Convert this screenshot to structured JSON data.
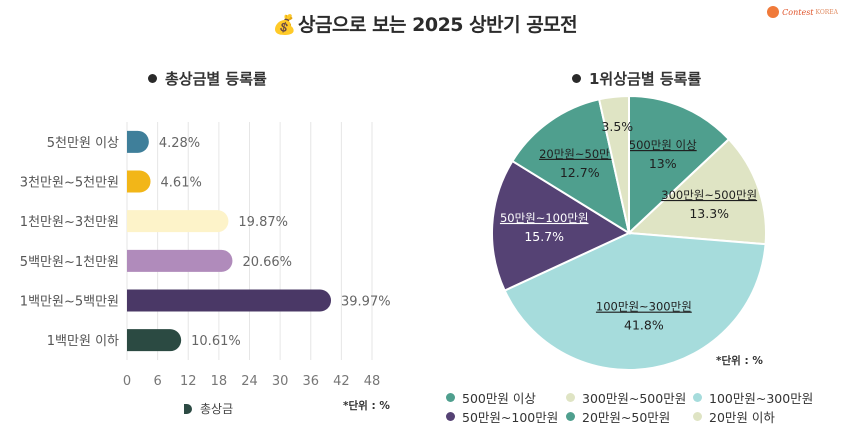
{
  "title": "상금으로 보는 2025 상반기 공모전",
  "logo": {
    "name": "Contest",
    "sub": "KOREA"
  },
  "chart_data": [
    {
      "type": "bar",
      "orientation": "horizontal",
      "title": "총상금별 등록률",
      "categories": [
        "5천만원 이상",
        "3천만원~5천만원",
        "1천만원~3천만원",
        "5백만원~1천만원",
        "1백만원~5백만원",
        "1백만원 이하"
      ],
      "values": [
        4.28,
        4.61,
        19.87,
        20.66,
        39.97,
        10.61
      ],
      "value_labels": [
        "4.28%",
        "4.61%",
        "19.87%",
        "20.66%",
        "39.97%",
        "10.61%"
      ],
      "colors": [
        "#3f7f9a",
        "#f2b618",
        "#fdf3c9",
        "#b08bbb",
        "#4a3866",
        "#2b4a42"
      ],
      "xlim": [
        0,
        48
      ],
      "xticks": [
        0,
        6,
        12,
        18,
        24,
        30,
        36,
        42,
        48
      ],
      "grid": true,
      "legend": {
        "position": "bottom",
        "entries": [
          "총상금"
        ]
      },
      "unit_note": "*단위 : %"
    },
    {
      "type": "pie",
      "title": "1위상금별 등록률",
      "slices": [
        {
          "label": "500만원 이상",
          "value": 13,
          "value_label": "13%",
          "color": "#4f9f8e"
        },
        {
          "label": "300만원~500만원",
          "value": 13.3,
          "value_label": "13.3%",
          "color": "#dfe4c4"
        },
        {
          "label": "100만원~300만원",
          "value": 41.8,
          "value_label": "41.8%",
          "color": "#a6dcdc"
        },
        {
          "label": "50만원~100만원",
          "value": 15.7,
          "value_label": "15.7%",
          "color": "#554274"
        },
        {
          "label": "20만원~50만원",
          "value": 12.7,
          "value_label": "12.7%",
          "color": "#4f9f8e"
        },
        {
          "label": "20만원 이하",
          "value": 3.5,
          "value_label": "3.5%",
          "color": "#dfe4c4"
        }
      ],
      "legend": {
        "position": "bottom",
        "entries": [
          {
            "label": "500만원 이상",
            "color": "#4f9f8e"
          },
          {
            "label": "300만원~500만원",
            "color": "#dfe4c4"
          },
          {
            "label": "100만원~300만원",
            "color": "#a6dcdc"
          },
          {
            "label": "50만원~100만원",
            "color": "#554274"
          },
          {
            "label": "20만원~50만원",
            "color": "#4f9f8e"
          },
          {
            "label": "20만원 이하",
            "color": "#dfe4c4"
          }
        ]
      },
      "unit_note": "*단위 : %"
    }
  ]
}
